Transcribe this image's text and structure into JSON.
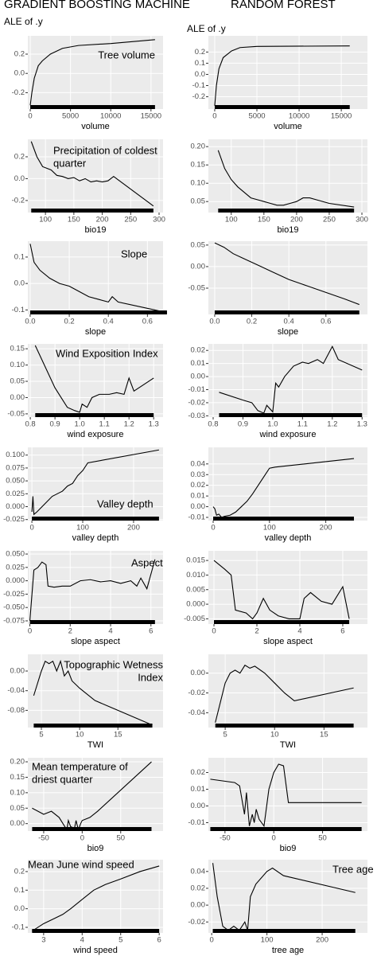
{
  "headers": [
    "GRADIENT BOOSTING MACHINE",
    "RANDOM FOREST"
  ],
  "chart_data": [
    {
      "type": "line",
      "ylabel": "ALE of .y",
      "annotation": "Tree volume",
      "xlabel": "volume",
      "color": "#000000",
      "grid": true,
      "x": [
        0,
        200,
        500,
        1000,
        1500,
        2500,
        4000,
        6000,
        10000,
        15500
      ],
      "values": [
        -0.33,
        -0.2,
        -0.05,
        0.08,
        0.13,
        0.2,
        0.26,
        0.29,
        0.31,
        0.35
      ],
      "xlim": [
        -300,
        16500
      ],
      "ylim": [
        -0.37,
        0.39
      ],
      "xticks": [
        0,
        5000,
        10000,
        15000
      ],
      "yticks": [
        -0.2,
        {
          "value": 0,
          "label": "0.0"
        },
        0.2
      ]
    },
    {
      "type": "line",
      "ylabel": "ALE of .y",
      "xlabel": "volume",
      "color": "#000000",
      "grid": true,
      "x": [
        0,
        200,
        500,
        1000,
        2000,
        3000,
        5000,
        16000
      ],
      "values": [
        -0.28,
        -0.1,
        0.05,
        0.15,
        0.21,
        0.24,
        0.25,
        0.255
      ],
      "xlim": [
        -750,
        18100
      ],
      "ylim": [
        -0.31,
        0.345
      ],
      "xticks": [
        0,
        5000,
        10000,
        15000
      ],
      "yticks": [
        -0.2,
        -0.1,
        {
          "value": 0,
          "label": "0.0"
        },
        0.1,
        0.2
      ]
    },
    {
      "type": "line",
      "annotation": [
        "Precipitation of coldest",
        "quarter"
      ],
      "xlabel": "bio19",
      "color": "#000000",
      "grid": true,
      "x": [
        75,
        85,
        95,
        110,
        120,
        130,
        140,
        150,
        160,
        170,
        180,
        190,
        200,
        210,
        220,
        290
      ],
      "values": [
        0.34,
        0.2,
        0.11,
        0.08,
        0.03,
        0.02,
        0.0,
        0.01,
        -0.02,
        0.0,
        -0.03,
        -0.02,
        -0.03,
        -0.02,
        0.02,
        -0.25
      ],
      "xlim": [
        69,
        307
      ],
      "ylim": [
        -0.31,
        0.36
      ],
      "xticks": [
        100,
        150,
        200,
        250,
        300
      ],
      "yticks": [
        -0.2,
        {
          "value": 0,
          "label": "0.0"
        },
        0.2
      ]
    },
    {
      "type": "line",
      "xlabel": "bio19",
      "color": "#000000",
      "grid": true,
      "x": [
        80,
        90,
        100,
        110,
        120,
        130,
        140,
        150,
        160,
        170,
        180,
        190,
        200,
        210,
        220,
        230,
        250,
        288
      ],
      "values": [
        0.19,
        0.14,
        0.11,
        0.09,
        0.075,
        0.06,
        0.055,
        0.05,
        0.045,
        0.04,
        0.04,
        0.045,
        0.05,
        0.06,
        0.06,
        0.055,
        0.045,
        0.035
      ],
      "xlim": [
        65,
        308.5
      ],
      "ylim": [
        0.02,
        0.22
      ],
      "xticks": [
        100,
        150,
        200,
        250,
        300
      ],
      "yticks": [
        0.05,
        {
          "value": 0.1,
          "label": "0.10"
        },
        0.15,
        {
          "value": 0.2,
          "label": "0.20"
        }
      ]
    },
    {
      "type": "line",
      "annotation": "Slope",
      "xlabel": "slope",
      "color": "#000000",
      "grid": true,
      "x": [
        0,
        0.02,
        0.05,
        0.1,
        0.15,
        0.2,
        0.25,
        0.3,
        0.35,
        0.4,
        0.42,
        0.45,
        0.7
      ],
      "values": [
        0.15,
        0.08,
        0.05,
        0.02,
        0.0,
        -0.01,
        -0.03,
        -0.05,
        -0.06,
        -0.07,
        -0.05,
        -0.07,
        -0.11
      ],
      "xlim": [
        -0.012,
        0.68
      ],
      "ylim": [
        -0.117,
        0.16
      ],
      "xticks": [
        {
          "value": 0,
          "label": "0.0"
        },
        0.2,
        0.4,
        0.6
      ],
      "yticks": [
        -0.1,
        {
          "value": 0,
          "label": "0.0"
        },
        0.1
      ]
    },
    {
      "type": "line",
      "xlabel": "slope",
      "color": "#000000",
      "grid": true,
      "x": [
        0,
        0.05,
        0.1,
        0.15,
        0.2,
        0.25,
        0.3,
        0.35,
        0.4,
        0.5,
        0.6,
        0.7,
        0.78
      ],
      "values": [
        0.055,
        0.045,
        0.03,
        0.02,
        0.01,
        0.0,
        -0.01,
        -0.02,
        -0.03,
        -0.045,
        -0.06,
        -0.075,
        -0.088
      ],
      "xlim": [
        -0.034,
        0.824
      ],
      "ylim": [
        -0.111,
        0.059
      ],
      "xticks": [
        {
          "value": 0,
          "label": "0.0"
        },
        0.2,
        0.4,
        0.6
      ],
      "yticks": [
        -0.05,
        {
          "value": 0,
          "label": "0.00"
        },
        0.05
      ]
    },
    {
      "type": "line",
      "annotation": "Wind Exposition Index",
      "xlabel": "wind exposure",
      "color": "#000000",
      "grid": true,
      "x": [
        0.82,
        0.9,
        0.95,
        0.98,
        1.0,
        1.01,
        1.03,
        1.05,
        1.08,
        1.12,
        1.15,
        1.18,
        1.2,
        1.22,
        1.3
      ],
      "values": [
        0.16,
        0.03,
        -0.03,
        -0.04,
        -0.045,
        -0.02,
        -0.03,
        0.0,
        0.01,
        0.01,
        0.015,
        0.01,
        0.06,
        0.02,
        0.06
      ],
      "xlim": [
        0.79,
        1.338
      ],
      "ylim": [
        -0.06,
        0.165
      ],
      "xticks": [
        0.8,
        0.9,
        {
          "value": 1,
          "label": "1.0"
        },
        1.1,
        1.2,
        1.3
      ],
      "yticks": [
        -0.05,
        {
          "value": 0,
          "label": "0.00"
        },
        0.05,
        {
          "value": 0.1,
          "label": "0.10"
        },
        0.15
      ]
    },
    {
      "type": "line",
      "xlabel": "wind exposure",
      "color": "#000000",
      "grid": true,
      "x": [
        0.82,
        0.9,
        0.93,
        0.95,
        0.97,
        0.98,
        1.0,
        1.01,
        1.02,
        1.04,
        1.07,
        1.1,
        1.12,
        1.15,
        1.17,
        1.2,
        1.22,
        1.3
      ],
      "values": [
        -0.012,
        -0.018,
        -0.02,
        -0.026,
        -0.028,
        -0.022,
        -0.027,
        -0.005,
        -0.008,
        0.0,
        0.008,
        0.011,
        0.01,
        0.013,
        0.01,
        0.023,
        0.013,
        0.005
      ],
      "xlim": [
        0.784,
        1.318
      ],
      "ylim": [
        -0.031,
        0.025
      ],
      "xticks": [
        0.8,
        0.9,
        {
          "value": 1,
          "label": "1.0"
        },
        1.1,
        1.2,
        1.3
      ],
      "yticks": [
        -0.03,
        -0.02,
        -0.01,
        {
          "value": 0,
          "label": "0.00"
        },
        0.01,
        0.02
      ]
    },
    {
      "type": "line",
      "annotation": "Valley depth",
      "xlabel": "valley depth",
      "color": "#000000",
      "grid": true,
      "x": [
        0,
        2,
        4,
        10,
        20,
        30,
        40,
        50,
        60,
        70,
        80,
        90,
        100,
        110,
        250
      ],
      "values": [
        -0.01,
        0.02,
        -0.015,
        -0.01,
        0.0,
        0.01,
        0.02,
        0.025,
        0.03,
        0.04,
        0.045,
        0.06,
        0.07,
        0.085,
        0.11
      ],
      "xlim": [
        -8,
        258
      ],
      "ylim": [
        -0.027,
        0.115
      ],
      "xticks": [
        0,
        100,
        200
      ],
      "yticks": [
        -0.025,
        {
          "value": 0,
          "label": "0.000"
        },
        0.025,
        {
          "value": 0.05,
          "label": "0.050"
        },
        0.075,
        {
          "value": 0.1,
          "label": "0.100"
        }
      ]
    },
    {
      "type": "line",
      "xlabel": "valley depth",
      "color": "#000000",
      "grid": true,
      "x": [
        0,
        3,
        6,
        10,
        15,
        20,
        30,
        40,
        50,
        60,
        70,
        80,
        90,
        100,
        110,
        250
      ],
      "values": [
        0.0,
        -0.002,
        -0.008,
        -0.007,
        -0.01,
        -0.009,
        -0.008,
        -0.005,
        0.0,
        0.005,
        0.012,
        0.02,
        0.028,
        0.036,
        0.037,
        0.045
      ],
      "xlim": [
        -8.5,
        274
      ],
      "ylim": [
        -0.013,
        0.0555
      ],
      "xticks": [
        0,
        100,
        200
      ],
      "yticks": [
        -0.01,
        {
          "value": 0,
          "label": "0.00"
        },
        0.01,
        0.02,
        0.03,
        0.04
      ]
    },
    {
      "type": "line",
      "annotation": "Aspect",
      "xlabel": "slope aspect",
      "color": "#000000",
      "grid": true,
      "x": [
        0,
        0.2,
        0.4,
        0.6,
        0.8,
        0.9,
        1.2,
        1.6,
        2.0,
        2.5,
        3.0,
        3.5,
        4.0,
        4.5,
        5.0,
        5.3,
        5.5,
        5.8,
        6.2
      ],
      "values": [
        -0.075,
        0.02,
        0.025,
        0.035,
        0.03,
        -0.01,
        -0.012,
        -0.01,
        -0.01,
        0.0,
        0.002,
        -0.002,
        0.0,
        -0.005,
        0.0,
        -0.01,
        0.005,
        -0.015,
        0.04
      ],
      "xlim": [
        -0.1,
        6.6
      ],
      "ylim": [
        -0.081,
        0.056
      ],
      "xticks": [
        0,
        2,
        4,
        6
      ],
      "yticks": [
        -0.075,
        {
          "value": -0.05,
          "label": "-0.050"
        },
        -0.025,
        {
          "value": 0,
          "label": "0.000"
        },
        0.025,
        {
          "value": 0.05,
          "label": "0.050"
        }
      ]
    },
    {
      "type": "line",
      "xlabel": "slope aspect",
      "color": "#000000",
      "grid": true,
      "x": [
        0,
        0.5,
        0.8,
        1.0,
        1.5,
        1.8,
        2.0,
        2.3,
        2.6,
        3.0,
        3.5,
        4.0,
        4.2,
        4.5,
        5.0,
        5.5,
        6.0,
        6.3
      ],
      "values": [
        0.015,
        0.012,
        0.01,
        -0.002,
        -0.003,
        -0.005,
        -0.003,
        0.002,
        -0.002,
        -0.004,
        -0.005,
        -0.005,
        0.002,
        0.004,
        0.001,
        0.0,
        0.006,
        -0.005
      ],
      "xlim": [
        -0.26,
        7.15
      ],
      "ylim": [
        -0.0068,
        0.0183
      ],
      "xticks": [
        0,
        2,
        4,
        6
      ],
      "yticks": [
        -0.005,
        {
          "value": 0,
          "label": "0.000"
        },
        0.005,
        {
          "value": 0.01,
          "label": "0.010"
        },
        0.015
      ]
    },
    {
      "type": "line",
      "annotation": [
        "Topographic Wetness",
        "Index"
      ],
      "xlabel": "TWI",
      "color": "#000000",
      "grid": true,
      "x": [
        4,
        5,
        5.5,
        6,
        6.5,
        7,
        7.5,
        8,
        8.5,
        9,
        10,
        12,
        15,
        19.5
      ],
      "values": [
        -0.05,
        0.0,
        0.02,
        0.015,
        0.02,
        0.0,
        0.02,
        -0.01,
        0.0,
        -0.02,
        -0.035,
        -0.06,
        -0.08,
        -0.11
      ],
      "xlim": [
        3.23,
        20.9
      ],
      "ylim": [
        -0.115,
        0.034
      ],
      "xticks": [
        5,
        10,
        15
      ],
      "yticks": [
        -0.08,
        -0.04,
        {
          "value": 0,
          "label": "0.00"
        }
      ]
    },
    {
      "type": "line",
      "xlabel": "TWI",
      "color": "#000000",
      "grid": true,
      "x": [
        4,
        4.5,
        5,
        5.5,
        6,
        6.5,
        7,
        7.5,
        8,
        9,
        10,
        11,
        12,
        18
      ],
      "values": [
        -0.05,
        -0.03,
        -0.01,
        0.0,
        0.003,
        0.0,
        0.008,
        0.005,
        0.007,
        0.0,
        -0.01,
        -0.02,
        -0.028,
        -0.015
      ],
      "xlim": [
        3.3,
        19.4
      ],
      "ylim": [
        -0.055,
        0.019
      ],
      "xticks": [
        5,
        10,
        15
      ],
      "yticks": [
        -0.04,
        -0.02,
        {
          "value": 0,
          "label": "0.00"
        }
      ]
    },
    {
      "type": "line",
      "annotation": [
        "Mean temperature of",
        "driest quarter"
      ],
      "xlabel": "bio9",
      "color": "#000000",
      "grid": true,
      "x": [
        -65,
        -50,
        -40,
        -30,
        -25,
        -20,
        -18,
        -15,
        -10,
        -8,
        -5,
        -2,
        0,
        10,
        20,
        90
      ],
      "values": [
        0.05,
        0.03,
        0.04,
        0.02,
        0.0,
        -0.02,
        0.01,
        -0.01,
        -0.015,
        0.01,
        -0.02,
        0.0,
        0.01,
        0.02,
        0.04,
        0.2
      ],
      "xlim": [
        -70.6,
        105
      ],
      "ylim": [
        -0.024,
        0.213
      ],
      "xticks": [
        -50,
        0,
        50
      ],
      "yticks": [
        {
          "value": 0,
          "label": "0.00"
        },
        0.05,
        {
          "value": 0.1,
          "label": "0.10"
        },
        0.15,
        {
          "value": 0.2,
          "label": "0.20"
        }
      ]
    },
    {
      "type": "line",
      "xlabel": "bio9",
      "color": "#000000",
      "grid": true,
      "x": [
        -65,
        -40,
        -35,
        -30,
        -28,
        -25,
        -22,
        -20,
        -18,
        -15,
        -10,
        -5,
        0,
        5,
        10,
        15,
        90
      ],
      "values": [
        0.016,
        0.014,
        0.012,
        -0.005,
        0.008,
        -0.012,
        -0.005,
        -0.01,
        -0.002,
        -0.008,
        -0.012,
        0.01,
        0.02,
        0.025,
        0.024,
        0.002,
        0.002
      ],
      "xlim": [
        -67,
        96
      ],
      "ylim": [
        -0.015,
        0.0288
      ],
      "xticks": [
        -50,
        0,
        50
      ],
      "yticks": [
        -0.01,
        {
          "value": 0,
          "label": "0.00"
        },
        0.01,
        0.02
      ]
    },
    {
      "type": "line",
      "annotation": "Mean June wind speed",
      "xlabel": "wind speed",
      "color": "#000000",
      "grid": true,
      "x": [
        2.7,
        3,
        3.3,
        3.5,
        3.7,
        4,
        4.3,
        4.6,
        5,
        5.5,
        6
      ],
      "values": [
        -0.12,
        -0.08,
        -0.05,
        -0.03,
        0.0,
        0.05,
        0.1,
        0.13,
        0.16,
        0.2,
        0.23
      ],
      "xlim": [
        2.59,
        6.1
      ],
      "ylim": [
        -0.13,
        0.264
      ],
      "xticks": [
        3,
        4,
        5,
        6
      ],
      "yticks": [
        -0.1,
        {
          "value": 0,
          "label": "0.0"
        },
        0.1,
        0.2
      ]
    },
    {
      "type": "line",
      "annotation": "Tree age",
      "xlabel": "tree age",
      "color": "#000000",
      "grid": true,
      "x": [
        2,
        10,
        20,
        30,
        40,
        50,
        60,
        65,
        70,
        80,
        100,
        110,
        130,
        260
      ],
      "values": [
        0.05,
        0.01,
        -0.025,
        -0.03,
        -0.025,
        -0.03,
        -0.02,
        -0.03,
        0.01,
        0.025,
        0.04,
        0.044,
        0.035,
        0.015
      ],
      "xlim": [
        -6,
        282
      ],
      "ylim": [
        -0.033,
        0.054
      ],
      "xticks": [
        0,
        100,
        200
      ],
      "yticks": [
        -0.02,
        {
          "value": 0,
          "label": "0.00"
        },
        0.02,
        0.04
      ]
    }
  ]
}
